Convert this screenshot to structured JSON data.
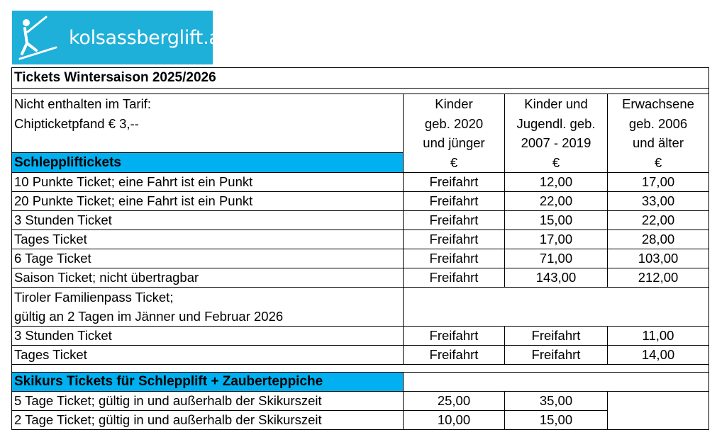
{
  "logo": {
    "text": "kolsassberglift.at",
    "bg_color": "#1eb0d9",
    "icon": "skier-icon"
  },
  "table": {
    "title": "Tickets Wintersaison 2025/2026",
    "note_line1": "Nicht enthalten im Tarif:",
    "note_line2": "Chipticketpfand € 3,--",
    "columns": [
      {
        "lines": [
          "Kinder",
          "geb. 2020",
          "und  jünger"
        ],
        "currency": "€"
      },
      {
        "lines": [
          "Kinder und",
          "Jugendl. geb.",
          "2007 - 2019"
        ],
        "currency": "€"
      },
      {
        "lines": [
          "Erwachsene",
          "geb. 2006",
          "und älter"
        ],
        "currency": "€"
      }
    ],
    "section1": "Schleppliftickets",
    "section1_color": "#00b0f0",
    "rows1": [
      {
        "label": "10 Punkte Ticket; eine Fahrt ist ein Punkt",
        "values": [
          "Freifahrt",
          "12,00",
          "17,00"
        ]
      },
      {
        "label": "20 Punkte Ticket; eine Fahrt ist ein Punkt",
        "values": [
          "Freifahrt",
          "22,00",
          "33,00"
        ]
      },
      {
        "label": "3 Stunden Ticket",
        "values": [
          "Freifahrt",
          "15,00",
          "22,00"
        ]
      },
      {
        "label": "Tages Ticket",
        "values": [
          "Freifahrt",
          "17,00",
          "28,00"
        ]
      },
      {
        "label": "6 Tage Ticket",
        "values": [
          "Freifahrt",
          "71,00",
          "103,00"
        ]
      },
      {
        "label": "Saison Ticket; nicht übertragbar",
        "values": [
          "Freifahrt",
          "143,00",
          "212,00"
        ]
      }
    ],
    "family_line1": "Tiroler Familienpass Ticket;",
    "family_line2": "gültig an  2 Tagen im Jänner und Februar  2026",
    "rows2": [
      {
        "label": "3 Stunden Ticket",
        "values": [
          "Freifahrt",
          "Freifahrt",
          "11,00"
        ]
      },
      {
        "label": "Tages Ticket",
        "values": [
          "Freifahrt",
          "Freifahrt",
          "14,00"
        ]
      }
    ],
    "section2": "Skikurs Tickets für Schlepplift + Zauberteppiche",
    "rows3": [
      {
        "label": "5 Tage Ticket; gültig in und außerhalb der Skikurszeit",
        "values": [
          "25,00",
          "35,00"
        ]
      },
      {
        "label": "2 Tage Ticket; gültig in und außerhalb der Skikurszeit",
        "values": [
          "10,00",
          "15,00"
        ]
      }
    ]
  }
}
